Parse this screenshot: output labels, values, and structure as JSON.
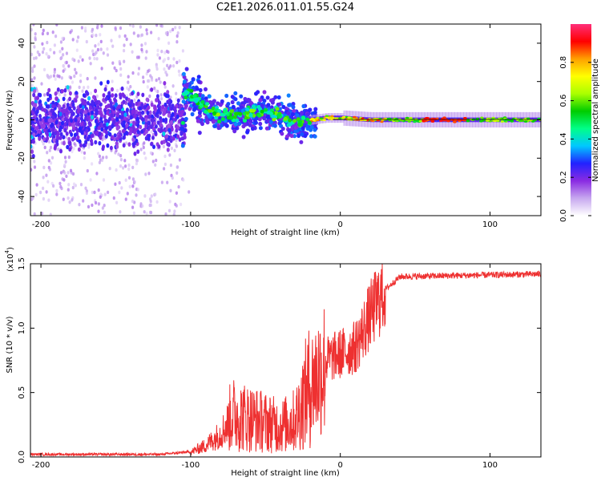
{
  "title": "C2E1.2026.011.01.55.G24",
  "chart_data": [
    {
      "type": "heatmap",
      "name": "spectrogram",
      "xlabel": "Height of straight line (km)",
      "ylabel": "Frequency (Hz)",
      "xlim": [
        -207,
        134
      ],
      "ylim": [
        -50,
        50
      ],
      "xticks": [
        -200,
        -100,
        0,
        100
      ],
      "yticks": [
        -40,
        -20,
        0,
        20,
        40
      ],
      "xtick_labels": [
        "-200",
        "-100",
        "0",
        "100"
      ],
      "ytick_labels": [
        "-40",
        "-20",
        "0",
        "20",
        "40"
      ],
      "colorbar": {
        "label": "Normalized spectral amplitude",
        "range": [
          0.0,
          1.0
        ],
        "ticks": [
          0.0,
          0.2,
          0.4,
          0.6,
          0.8
        ],
        "tick_labels": [
          "0.0",
          "0.2",
          "0.4",
          "0.6",
          "0.8"
        ],
        "colors": [
          "#ffffff",
          "#c7a8ef",
          "#8a2be2",
          "#2222ff",
          "#00c8ff",
          "#00ff88",
          "#00cc00",
          "#aaff00",
          "#ffff00",
          "#ffa000",
          "#ff0000",
          "#ff2f7a"
        ]
      },
      "frequency_track": [
        {
          "x": -105,
          "f": 14
        },
        {
          "x": -98,
          "f": 12
        },
        {
          "x": -90,
          "f": 6
        },
        {
          "x": -80,
          "f": 3
        },
        {
          "x": -70,
          "f": 2
        },
        {
          "x": -60,
          "f": 4
        },
        {
          "x": -50,
          "f": 4
        },
        {
          "x": -40,
          "f": 2
        },
        {
          "x": -30,
          "f": -2
        },
        {
          "x": -20,
          "f": 0
        },
        {
          "x": -10,
          "f": 1
        },
        {
          "x": 0,
          "f": 1
        },
        {
          "x": 20,
          "f": 0
        },
        {
          "x": 50,
          "f": 0
        },
        {
          "x": 80,
          "f": 0
        },
        {
          "x": 134,
          "f": 0
        }
      ]
    },
    {
      "type": "line",
      "name": "snr",
      "xlabel": "Height of straight line (km)",
      "ylabel": "SNR (10 * v/v)",
      "scale_note": "(x10",
      "scale_exponent": "4",
      "xlim": [
        -207,
        134
      ],
      "ylim": [
        0,
        1.5
      ],
      "xticks": [
        -200,
        -100,
        0,
        100
      ],
      "yticks": [
        0.0,
        0.5,
        1.0,
        1.5
      ],
      "xtick_labels": [
        "-200",
        "-100",
        "0",
        "100"
      ],
      "ytick_labels": [
        "0.0",
        "0.5",
        "1.0",
        "1.5"
      ],
      "color": "#ee3030",
      "envelope": [
        {
          "x": -207,
          "y": 0.02
        },
        {
          "x": -120,
          "y": 0.02
        },
        {
          "x": -100,
          "y": 0.04
        },
        {
          "x": -90,
          "y": 0.1
        },
        {
          "x": -80,
          "y": 0.2
        },
        {
          "x": -72,
          "y": 0.35
        },
        {
          "x": -55,
          "y": 0.3
        },
        {
          "x": -40,
          "y": 0.25
        },
        {
          "x": -30,
          "y": 0.3
        },
        {
          "x": -22,
          "y": 0.55
        },
        {
          "x": -10,
          "y": 0.75
        },
        {
          "x": 0,
          "y": 0.8
        },
        {
          "x": 10,
          "y": 0.85
        },
        {
          "x": 20,
          "y": 1.1
        },
        {
          "x": 30,
          "y": 1.3
        },
        {
          "x": 40,
          "y": 1.4
        },
        {
          "x": 134,
          "y": 1.42
        }
      ]
    }
  ]
}
